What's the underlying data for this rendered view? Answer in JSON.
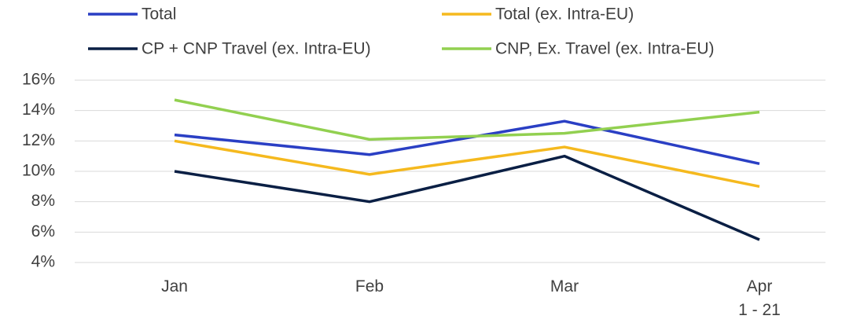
{
  "chart_data": {
    "type": "line",
    "categories": [
      "Jan",
      "Feb",
      "Mar",
      "Apr\n1 - 21"
    ],
    "series": [
      {
        "name": "Total",
        "color": "#2a3fc4",
        "values": [
          12.4,
          11.1,
          13.3,
          10.5
        ]
      },
      {
        "name": "Total (ex. Intra-EU)",
        "color": "#f5b91e",
        "values": [
          12.0,
          9.8,
          11.6,
          9.0
        ]
      },
      {
        "name": "CP + CNP Travel (ex. Intra-EU)",
        "color": "#0a1f44",
        "values": [
          10.0,
          8.0,
          11.0,
          5.5
        ]
      },
      {
        "name": "CNP, Ex. Travel (ex. Intra-EU)",
        "color": "#92d050",
        "values": [
          14.7,
          12.1,
          12.5,
          13.9
        ]
      }
    ],
    "ylim": [
      4,
      16
    ],
    "yticks": [
      {
        "value": 4,
        "label": "4%"
      },
      {
        "value": 6,
        "label": "6%"
      },
      {
        "value": 8,
        "label": "8%"
      },
      {
        "value": 10,
        "label": "10%"
      },
      {
        "value": 12,
        "label": "12%"
      },
      {
        "value": 14,
        "label": "14%"
      },
      {
        "value": 16,
        "label": "16%"
      }
    ],
    "grid": true,
    "legend": "top"
  }
}
